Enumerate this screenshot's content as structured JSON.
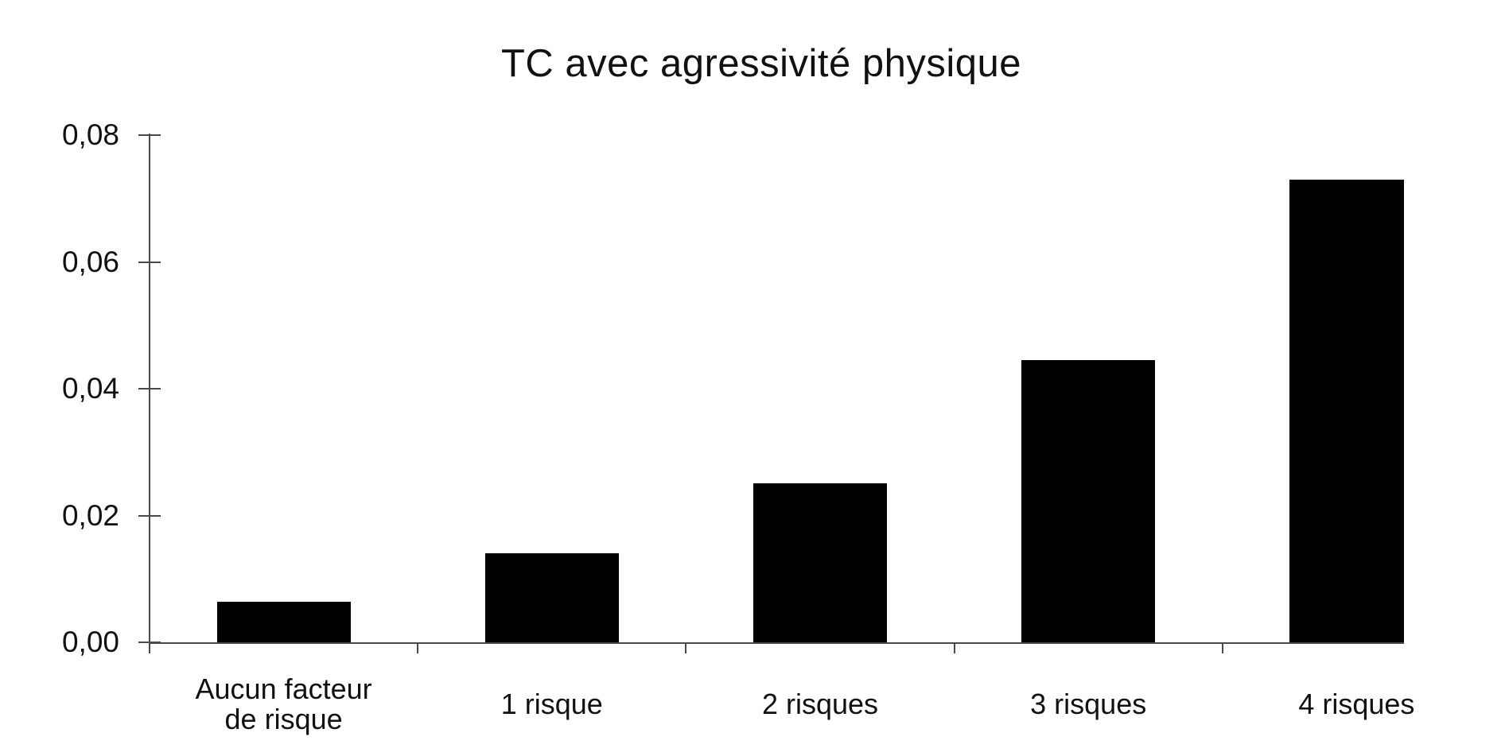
{
  "page": {
    "background": "#ffffff"
  },
  "chart_data": {
    "type": "bar",
    "title": "TC avec agressivité physique",
    "categories": [
      "Aucun facteur de risque",
      "1 risque",
      "2 risques",
      "3 risques",
      "4 risques"
    ],
    "values": [
      0.0064,
      0.0141,
      0.0251,
      0.0445,
      0.073
    ],
    "xlabel": "",
    "ylabel": "",
    "ylim": [
      0,
      0.08
    ],
    "ytick_values": [
      0,
      0.02,
      0.04,
      0.06,
      0.08
    ],
    "ytick_labels": [
      "0,00",
      "0,02",
      "0,04",
      "0,06",
      "0,08"
    ],
    "decimal_separator": ",",
    "bar_color": "#000000",
    "axis_color": "#4a4a4a",
    "text_color": "#111111",
    "grid": false,
    "legend": "none"
  }
}
